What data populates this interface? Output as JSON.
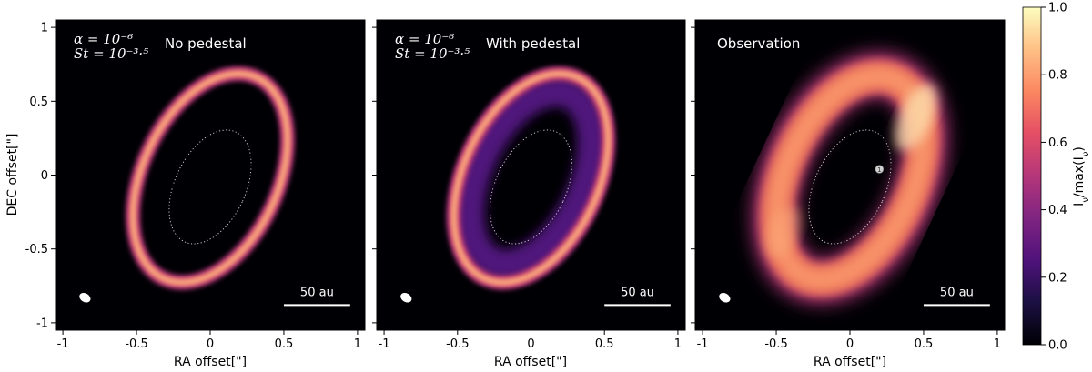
{
  "chart_data": {
    "type": "heatmap",
    "colormap": "magma",
    "xlim": [
      -1.05,
      1.05
    ],
    "ylim": [
      -1.05,
      1.05
    ],
    "x_ticks": [
      -1,
      -0.5,
      0,
      0.5,
      1
    ],
    "x_tick_labels": [
      "-1",
      "-0.5",
      "0",
      "0.5",
      "1"
    ],
    "y_ticks": [
      1,
      0.5,
      0,
      -0.5,
      -1
    ],
    "y_tick_labels": [
      "1",
      "0.5",
      "0",
      "-0.5",
      "-1"
    ],
    "xlabel": "RA offset[\"]",
    "ylabel": "DEC offset[\"]",
    "colorbar": {
      "label": "Iν/max(Iν)",
      "range": [
        0.0,
        1.0
      ],
      "ticks": [
        "1.0",
        "0.8",
        "0.6",
        "0.4",
        "0.2",
        "0.0"
      ]
    },
    "panels": [
      {
        "title": "No pedestal",
        "params": [
          "α = 10⁻⁶",
          "St = 10⁻³·⁵"
        ],
        "scale_bar": "50 au",
        "ring_ra": 0.46,
        "ring_dec": 0.75,
        "pedestal": false
      },
      {
        "title": "With pedestal",
        "params": [
          "α = 10⁻⁶",
          "St = 10⁻³·⁵"
        ],
        "scale_bar": "50 au",
        "ring_ra": 0.46,
        "ring_dec": 0.75,
        "pedestal": true
      },
      {
        "title": "Observation",
        "params": [],
        "scale_bar": "50 au",
        "ring_ra": 0.42,
        "ring_dec": 0.72,
        "pedestal": false,
        "marker": "1"
      }
    ]
  }
}
